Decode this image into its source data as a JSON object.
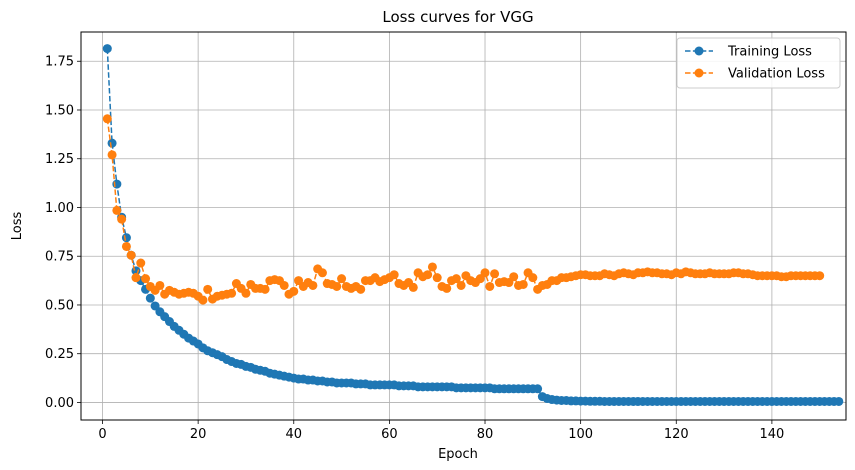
{
  "chart_data": {
    "type": "line",
    "title": "Loss curves for VGG",
    "xlabel": "Epoch",
    "ylabel": "Loss",
    "xlim": [
      -4.5,
      155.5
    ],
    "ylim": [
      -0.09,
      1.9
    ],
    "xticks": [
      0,
      20,
      40,
      60,
      80,
      100,
      120,
      140
    ],
    "xtick_labels": [
      "0",
      "20",
      "40",
      "60",
      "80",
      "100",
      "120",
      "140"
    ],
    "yticks": [
      0.0,
      0.25,
      0.5,
      0.75,
      1.0,
      1.25,
      1.5,
      1.75
    ],
    "ytick_labels": [
      "0.00",
      "0.25",
      "0.50",
      "0.75",
      "1.00",
      "1.25",
      "1.50",
      "1.75"
    ],
    "grid": true,
    "legend": "top-right",
    "series": [
      {
        "name": "Training Loss",
        "color": "#1f77b4",
        "line_style": "dashed",
        "marker": "circle",
        "values": [
          1.815,
          1.33,
          1.12,
          0.95,
          0.845,
          0.755,
          0.675,
          0.625,
          0.58,
          0.535,
          0.495,
          0.465,
          0.44,
          0.415,
          0.39,
          0.37,
          0.35,
          0.33,
          0.315,
          0.3,
          0.28,
          0.265,
          0.255,
          0.245,
          0.235,
          0.22,
          0.21,
          0.2,
          0.195,
          0.185,
          0.18,
          0.17,
          0.165,
          0.16,
          0.15,
          0.145,
          0.14,
          0.135,
          0.13,
          0.125,
          0.12,
          0.12,
          0.115,
          0.115,
          0.11,
          0.11,
          0.105,
          0.105,
          0.1,
          0.1,
          0.1,
          0.1,
          0.095,
          0.095,
          0.095,
          0.09,
          0.09,
          0.09,
          0.09,
          0.09,
          0.09,
          0.085,
          0.085,
          0.085,
          0.085,
          0.08,
          0.08,
          0.08,
          0.08,
          0.08,
          0.08,
          0.08,
          0.08,
          0.075,
          0.075,
          0.075,
          0.075,
          0.075,
          0.075,
          0.075,
          0.075,
          0.07,
          0.07,
          0.07,
          0.07,
          0.07,
          0.07,
          0.07,
          0.07,
          0.07,
          0.07,
          0.03,
          0.02,
          0.015,
          0.012,
          0.01,
          0.01,
          0.008,
          0.008,
          0.007,
          0.007,
          0.006,
          0.006,
          0.006,
          0.005,
          0.005,
          0.005,
          0.005,
          0.005,
          0.005,
          0.005,
          0.005,
          0.005,
          0.005,
          0.005,
          0.005,
          0.005,
          0.005,
          0.005,
          0.005,
          0.005,
          0.005,
          0.005,
          0.005,
          0.005,
          0.005,
          0.005,
          0.005,
          0.005,
          0.005,
          0.005,
          0.005,
          0.005,
          0.005,
          0.005,
          0.005,
          0.005,
          0.005,
          0.005,
          0.005,
          0.005,
          0.005,
          0.005,
          0.005,
          0.005,
          0.005,
          0.005,
          0.005,
          0.005,
          0.005,
          0.005,
          0.005,
          0.005,
          0.005
        ]
      },
      {
        "name": "Validation Loss",
        "color": "#ff7f0e",
        "line_style": "dashed",
        "marker": "circle",
        "values": [
          1.455,
          1.27,
          0.985,
          0.94,
          0.8,
          0.755,
          0.64,
          0.715,
          0.635,
          0.595,
          0.575,
          0.6,
          0.555,
          0.575,
          0.565,
          0.555,
          0.56,
          0.565,
          0.56,
          0.545,
          0.525,
          0.58,
          0.53,
          0.545,
          0.55,
          0.555,
          0.56,
          0.61,
          0.585,
          0.56,
          0.605,
          0.585,
          0.585,
          0.58,
          0.625,
          0.63,
          0.625,
          0.6,
          0.555,
          0.57,
          0.625,
          0.595,
          0.615,
          0.6,
          0.685,
          0.665,
          0.61,
          0.605,
          0.595,
          0.635,
          0.595,
          0.585,
          0.595,
          0.58,
          0.625,
          0.625,
          0.64,
          0.62,
          0.63,
          0.64,
          0.655,
          0.61,
          0.6,
          0.615,
          0.59,
          0.665,
          0.645,
          0.655,
          0.695,
          0.64,
          0.595,
          0.585,
          0.625,
          0.635,
          0.6,
          0.65,
          0.625,
          0.615,
          0.635,
          0.665,
          0.595,
          0.66,
          0.615,
          0.62,
          0.615,
          0.645,
          0.6,
          0.605,
          0.665,
          0.64,
          0.58,
          0.6,
          0.605,
          0.625,
          0.625,
          0.64,
          0.64,
          0.645,
          0.65,
          0.655,
          0.655,
          0.65,
          0.65,
          0.65,
          0.66,
          0.655,
          0.65,
          0.66,
          0.665,
          0.66,
          0.655,
          0.665,
          0.665,
          0.67,
          0.665,
          0.665,
          0.66,
          0.66,
          0.655,
          0.665,
          0.66,
          0.67,
          0.665,
          0.66,
          0.66,
          0.66,
          0.665,
          0.66,
          0.66,
          0.66,
          0.66,
          0.665,
          0.665,
          0.66,
          0.66,
          0.655,
          0.65,
          0.65,
          0.65,
          0.65,
          0.65,
          0.645,
          0.645,
          0.65,
          0.65,
          0.65,
          0.65,
          0.65,
          0.65,
          0.65
        ]
      }
    ]
  }
}
